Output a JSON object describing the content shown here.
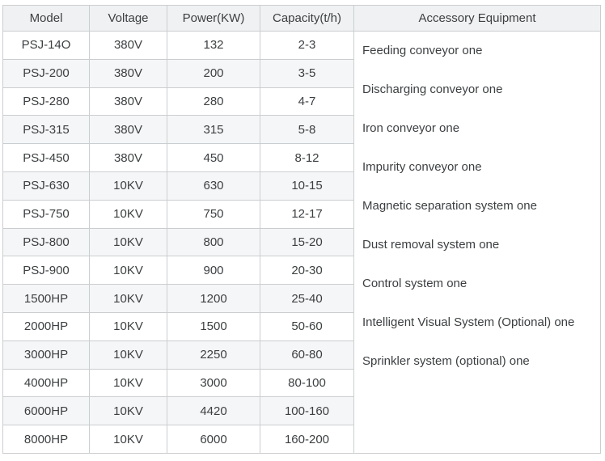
{
  "table": {
    "headers": [
      "Model",
      "Voltage",
      "Power(KW)",
      "Capacity(t/h)",
      "Accessory Equipment"
    ],
    "rows": [
      {
        "model": "PSJ-14O",
        "voltage": "380V",
        "power": "132",
        "capacity": "2-3"
      },
      {
        "model": "PSJ-200",
        "voltage": "380V",
        "power": "200",
        "capacity": "3-5"
      },
      {
        "model": "PSJ-280",
        "voltage": "380V",
        "power": "280",
        "capacity": "4-7"
      },
      {
        "model": "PSJ-315",
        "voltage": "380V",
        "power": "315",
        "capacity": "5-8"
      },
      {
        "model": "PSJ-450",
        "voltage": "380V",
        "power": "450",
        "capacity": "8-12"
      },
      {
        "model": "PSJ-630",
        "voltage": "10KV",
        "power": "630",
        "capacity": "10-15"
      },
      {
        "model": "PSJ-750",
        "voltage": "10KV",
        "power": "750",
        "capacity": "12-17"
      },
      {
        "model": "PSJ-800",
        "voltage": "10KV",
        "power": "800",
        "capacity": "15-20"
      },
      {
        "model": "PSJ-900",
        "voltage": "10KV",
        "power": "900",
        "capacity": "20-30"
      },
      {
        "model": "1500HP",
        "voltage": "10KV",
        "power": "1200",
        "capacity": "25-40"
      },
      {
        "model": "2000HP",
        "voltage": "10KV",
        "power": "1500",
        "capacity": "50-60"
      },
      {
        "model": "3000HP",
        "voltage": "10KV",
        "power": "2250",
        "capacity": "60-80"
      },
      {
        "model": "4000HP",
        "voltage": "10KV",
        "power": "3000",
        "capacity": "80-100"
      },
      {
        "model": "6000HP",
        "voltage": "10KV",
        "power": "4420",
        "capacity": "100-160"
      },
      {
        "model": "8000HP",
        "voltage": "10KV",
        "power": "6000",
        "capacity": "160-200"
      }
    ],
    "accessory_items": [
      "Feeding conveyor one",
      "Discharging conveyor one",
      "Iron conveyor one",
      "Impurity conveyor one",
      "Magnetic separation system one",
      "Dust removal system one",
      "Control system one",
      "Intelligent Visual System (Optional) one",
      "Sprinkler system (optional) one"
    ]
  },
  "colors": {
    "header_bg": "#f0f1f2",
    "stripe_bg": "#f5f6f7",
    "border": "#cbced0",
    "text": "#3c3f41"
  }
}
